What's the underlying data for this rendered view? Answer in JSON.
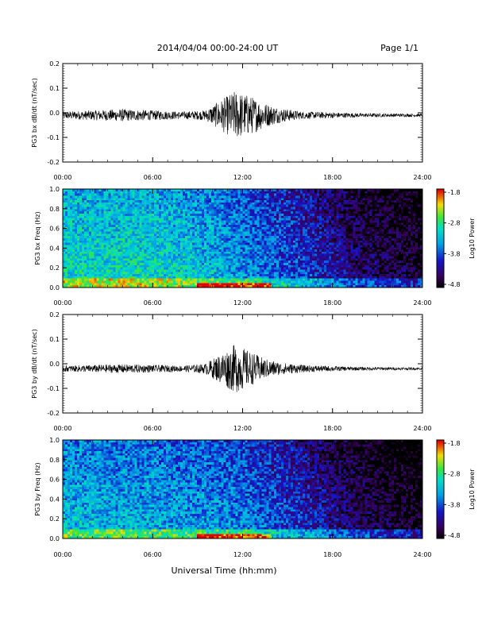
{
  "header": {
    "title": "2014/04/04  00:00-24:00 UT",
    "page": "Page 1/1"
  },
  "x_axis": {
    "tick_labels": [
      "00:00",
      "06:00",
      "12:00",
      "18:00",
      "24:00"
    ],
    "title": "Universal Time (hh:mm)"
  },
  "colorbar": {
    "label": "Log10 Power",
    "tick_labels": [
      "-1.8",
      "-2.8",
      "-3.8",
      "-4.8"
    ]
  },
  "colors": {
    "trace": "#000000"
  },
  "chart_data": [
    {
      "type": "line",
      "ylabel": "PG3 bx dB/dt (nT/sec)",
      "xlim": [
        0,
        24
      ],
      "ylim": [
        -0.2,
        0.2
      ],
      "y_tick_labels": [
        "0.2",
        "0.1",
        "0.0",
        "-0.1",
        "-0.2"
      ],
      "x_tick_labels": [
        "00:00",
        "06:00",
        "12:00",
        "18:00",
        "24:00"
      ],
      "baseline": -0.01,
      "envelope": [
        {
          "t": 0,
          "amp": 0.015
        },
        {
          "t": 2,
          "amp": 0.02
        },
        {
          "t": 4,
          "amp": 0.025
        },
        {
          "t": 6,
          "amp": 0.02
        },
        {
          "t": 8,
          "amp": 0.015
        },
        {
          "t": 9.5,
          "amp": 0.02
        },
        {
          "t": 10.5,
          "amp": 0.06
        },
        {
          "t": 11.5,
          "amp": 0.1
        },
        {
          "t": 12.5,
          "amp": 0.08
        },
        {
          "t": 13.5,
          "amp": 0.05
        },
        {
          "t": 14.5,
          "amp": 0.03
        },
        {
          "t": 16,
          "amp": 0.015
        },
        {
          "t": 18,
          "amp": 0.012
        },
        {
          "t": 20,
          "amp": 0.008
        },
        {
          "t": 24,
          "amp": 0.006
        }
      ]
    },
    {
      "type": "heatmap",
      "ylabel": "PG3 bx Freq (Hz)",
      "xlim": [
        0,
        24
      ],
      "ylim": [
        0,
        1
      ],
      "y_tick_labels": [
        "1.0",
        "0.8",
        "0.6",
        "0.4",
        "0.2",
        "0.0"
      ],
      "x_tick_labels": [
        "00:00",
        "06:00",
        "12:00",
        "18:00",
        "24:00"
      ],
      "colorbar_range": [
        -4.8,
        -1.8
      ],
      "power_profile": [
        {
          "t": 0,
          "log_power": -3.0
        },
        {
          "t": 6,
          "log_power": -3.0
        },
        {
          "t": 10,
          "log_power": -3.2
        },
        {
          "t": 12,
          "log_power": -3.4
        },
        {
          "t": 16,
          "log_power": -3.8
        },
        {
          "t": 20,
          "log_power": -4.3
        },
        {
          "t": 24,
          "log_power": -4.6
        }
      ]
    },
    {
      "type": "line",
      "ylabel": "PG3 by dB/dt (nT/sec)",
      "xlim": [
        0,
        24
      ],
      "ylim": [
        -0.2,
        0.2
      ],
      "y_tick_labels": [
        "0.2",
        "0.1",
        "0.0",
        "-0.1",
        "-0.2"
      ],
      "x_tick_labels": [
        "00:00",
        "06:00",
        "12:00",
        "18:00",
        "24:00"
      ],
      "baseline": -0.02,
      "envelope": [
        {
          "t": 0,
          "amp": 0.012
        },
        {
          "t": 2,
          "amp": 0.015
        },
        {
          "t": 4,
          "amp": 0.018
        },
        {
          "t": 6,
          "amp": 0.015
        },
        {
          "t": 8,
          "amp": 0.012
        },
        {
          "t": 9.5,
          "amp": 0.02
        },
        {
          "t": 10.5,
          "amp": 0.06
        },
        {
          "t": 11.5,
          "amp": 0.1
        },
        {
          "t": 12.5,
          "amp": 0.07
        },
        {
          "t": 13.5,
          "amp": 0.04
        },
        {
          "t": 14.5,
          "amp": 0.025
        },
        {
          "t": 16,
          "amp": 0.015
        },
        {
          "t": 18,
          "amp": 0.01
        },
        {
          "t": 20,
          "amp": 0.007
        },
        {
          "t": 24,
          "amp": 0.005
        }
      ]
    },
    {
      "type": "heatmap",
      "ylabel": "PG3 by Freq (Hz)",
      "xlim": [
        0,
        24
      ],
      "ylim": [
        0,
        1
      ],
      "y_tick_labels": [
        "1.0",
        "0.8",
        "0.6",
        "0.4",
        "0.2",
        "0.0"
      ],
      "x_tick_labels": [
        "00:00",
        "06:00",
        "12:00",
        "18:00",
        "24:00"
      ],
      "colorbar_range": [
        -4.8,
        -1.8
      ],
      "power_profile": [
        {
          "t": 0,
          "log_power": -3.2
        },
        {
          "t": 6,
          "log_power": -3.3
        },
        {
          "t": 10,
          "log_power": -3.4
        },
        {
          "t": 12,
          "log_power": -3.5
        },
        {
          "t": 16,
          "log_power": -3.9
        },
        {
          "t": 20,
          "log_power": -4.4
        },
        {
          "t": 24,
          "log_power": -4.7
        }
      ]
    }
  ]
}
